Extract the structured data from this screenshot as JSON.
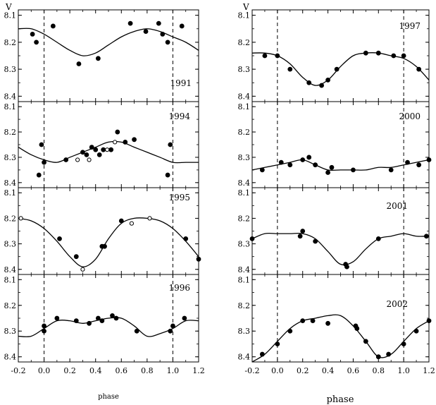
{
  "figure": {
    "ylabel": "V",
    "xlabel_left": "phase",
    "xlabel_right": "phase"
  },
  "chart_data": [
    {
      "type": "scatter",
      "title": "1991",
      "column": "left",
      "xlim": [
        -0.2,
        1.2
      ],
      "ylim": [
        8.42,
        8.08
      ],
      "y_inverted": true,
      "yticks": [
        "8.1",
        "8.2",
        "8.3",
        "8.4"
      ],
      "xticks": [],
      "vlines": [
        0.0,
        1.0
      ],
      "series": [
        {
          "marker": "filled",
          "x": [
            -0.09,
            -0.06,
            0.07,
            0.27,
            0.42,
            0.67,
            0.79,
            0.89,
            0.92,
            0.96,
            1.07
          ],
          "y": [
            8.17,
            8.2,
            8.14,
            8.28,
            8.26,
            8.13,
            8.16,
            8.13,
            8.17,
            8.2,
            8.14
          ]
        }
      ],
      "curve": {
        "x": [
          -0.2,
          -0.1,
          0.0,
          0.1,
          0.2,
          0.3,
          0.4,
          0.5,
          0.6,
          0.7,
          0.8,
          0.9,
          1.0,
          1.1,
          1.2
        ],
        "y": [
          8.15,
          8.15,
          8.17,
          8.2,
          8.23,
          8.25,
          8.24,
          8.21,
          8.18,
          8.16,
          8.15,
          8.16,
          8.18,
          8.2,
          8.23
        ]
      }
    },
    {
      "type": "scatter",
      "title": "1994",
      "column": "left",
      "xlim": [
        -0.2,
        1.2
      ],
      "ylim": [
        8.42,
        8.08
      ],
      "y_inverted": true,
      "yticks": [
        "8.1",
        "8.2",
        "8.3",
        "8.4"
      ],
      "xticks": [],
      "vlines": [
        0.0,
        1.0
      ],
      "series": [
        {
          "marker": "filled",
          "x": [
            -0.04,
            -0.02,
            0.0,
            0.17,
            0.3,
            0.33,
            0.37,
            0.4,
            0.43,
            0.46,
            0.52,
            0.57,
            0.63,
            0.7,
            0.96,
            0.98
          ],
          "y": [
            8.37,
            8.25,
            8.32,
            8.31,
            8.28,
            8.29,
            8.26,
            8.27,
            8.29,
            8.27,
            8.27,
            8.2,
            8.24,
            8.23,
            8.37,
            8.25
          ]
        },
        {
          "marker": "open",
          "x": [
            0.26,
            0.35,
            0.49,
            0.55
          ],
          "y": [
            8.31,
            8.31,
            8.27,
            8.24
          ]
        }
      ],
      "curve": {
        "x": [
          -0.2,
          -0.1,
          0.0,
          0.1,
          0.2,
          0.3,
          0.4,
          0.5,
          0.6,
          0.7,
          0.8,
          0.9,
          1.0,
          1.1,
          1.2
        ],
        "y": [
          8.26,
          8.29,
          8.31,
          8.32,
          8.3,
          8.28,
          8.26,
          8.24,
          8.24,
          8.26,
          8.28,
          8.3,
          8.32,
          8.32,
          8.32
        ]
      }
    },
    {
      "type": "scatter",
      "title": "1995",
      "column": "left",
      "xlim": [
        -0.2,
        1.2
      ],
      "ylim": [
        8.42,
        8.08
      ],
      "y_inverted": true,
      "yticks": [
        "8.1",
        "8.2",
        "8.3",
        "8.4"
      ],
      "xticks": [],
      "vlines": [
        0.0,
        1.0
      ],
      "series": [
        {
          "marker": "filled",
          "x": [
            0.12,
            0.25,
            0.45,
            0.47,
            0.6,
            1.1,
            1.2
          ],
          "y": [
            8.28,
            8.35,
            8.31,
            8.31,
            8.21,
            8.28,
            8.36
          ]
        },
        {
          "marker": "open",
          "x": [
            -0.18,
            0.3,
            0.68,
            0.82
          ],
          "y": [
            8.2,
            8.4,
            8.22,
            8.2
          ]
        }
      ],
      "curve": {
        "x": [
          -0.2,
          -0.1,
          0.0,
          0.1,
          0.2,
          0.3,
          0.4,
          0.5,
          0.6,
          0.7,
          0.8,
          0.9,
          1.0,
          1.1,
          1.2
        ],
        "y": [
          8.2,
          8.21,
          8.24,
          8.29,
          8.35,
          8.39,
          8.36,
          8.28,
          8.22,
          8.2,
          8.2,
          8.21,
          8.24,
          8.29,
          8.35
        ]
      }
    },
    {
      "type": "scatter",
      "title": "1996",
      "column": "left",
      "xlim": [
        -0.2,
        1.2
      ],
      "ylim": [
        8.42,
        8.08
      ],
      "y_inverted": true,
      "yticks": [
        "8.1",
        "8.2",
        "8.3",
        "8.4"
      ],
      "xticks": [
        "-0.2",
        "0.0",
        "0.2",
        "0.4",
        "0.6",
        "0.8",
        "1.0",
        "1.2"
      ],
      "vlines": [
        0.0,
        1.0
      ],
      "series": [
        {
          "marker": "filled",
          "x": [
            0.0,
            0.0,
            0.1,
            0.25,
            0.35,
            0.42,
            0.45,
            0.53,
            0.56,
            0.72,
            0.98,
            1.0,
            1.09
          ],
          "y": [
            8.3,
            8.28,
            8.25,
            8.26,
            8.27,
            8.25,
            8.26,
            8.24,
            8.25,
            8.3,
            8.3,
            8.28,
            8.25
          ]
        }
      ],
      "curve": {
        "x": [
          -0.2,
          -0.1,
          0.0,
          0.1,
          0.2,
          0.3,
          0.4,
          0.5,
          0.6,
          0.7,
          0.8,
          0.9,
          1.0,
          1.1,
          1.2
        ],
        "y": [
          8.32,
          8.32,
          8.29,
          8.26,
          8.26,
          8.27,
          8.26,
          8.25,
          8.25,
          8.28,
          8.32,
          8.31,
          8.29,
          8.26,
          8.26
        ]
      }
    },
    {
      "type": "scatter",
      "title": "1997",
      "column": "right",
      "xlim": [
        -0.2,
        1.2
      ],
      "ylim": [
        8.42,
        8.08
      ],
      "y_inverted": true,
      "yticks": [
        "8.1",
        "8.2",
        "8.3",
        "8.4"
      ],
      "xticks": [],
      "vlines": [
        0.0,
        1.0
      ],
      "series": [
        {
          "marker": "filled",
          "x": [
            -0.1,
            0.0,
            0.1,
            0.25,
            0.35,
            0.4,
            0.47,
            0.7,
            0.8,
            0.92,
            1.0,
            1.12
          ],
          "y": [
            8.25,
            8.25,
            8.3,
            8.35,
            8.36,
            8.34,
            8.3,
            8.24,
            8.24,
            8.25,
            8.25,
            8.3
          ]
        }
      ],
      "curve": {
        "x": [
          -0.2,
          -0.1,
          0.0,
          0.1,
          0.2,
          0.3,
          0.4,
          0.5,
          0.6,
          0.7,
          0.8,
          0.9,
          1.0,
          1.1,
          1.2
        ],
        "y": [
          8.24,
          8.24,
          8.25,
          8.28,
          8.33,
          8.36,
          8.34,
          8.29,
          8.25,
          8.24,
          8.24,
          8.25,
          8.26,
          8.29,
          8.34
        ]
      }
    },
    {
      "type": "scatter",
      "title": "2000",
      "column": "right",
      "xlim": [
        -0.2,
        1.2
      ],
      "ylim": [
        8.42,
        8.08
      ],
      "y_inverted": true,
      "yticks": [
        "8.1",
        "8.2",
        "8.3",
        "8.4"
      ],
      "xticks": [],
      "vlines": [
        0.0,
        1.0
      ],
      "series": [
        {
          "marker": "filled",
          "x": [
            -0.12,
            0.03,
            0.1,
            0.2,
            0.25,
            0.3,
            0.4,
            0.43,
            0.6,
            0.9,
            1.03,
            1.12,
            1.2
          ],
          "y": [
            8.35,
            8.32,
            8.33,
            8.31,
            8.3,
            8.33,
            8.36,
            8.34,
            8.35,
            8.35,
            8.32,
            8.33,
            8.31
          ]
        }
      ],
      "curve": {
        "x": [
          -0.2,
          -0.1,
          0.0,
          0.1,
          0.2,
          0.3,
          0.4,
          0.5,
          0.6,
          0.7,
          0.8,
          0.9,
          1.0,
          1.1,
          1.2
        ],
        "y": [
          8.35,
          8.34,
          8.33,
          8.32,
          8.31,
          8.33,
          8.35,
          8.35,
          8.35,
          8.35,
          8.34,
          8.34,
          8.33,
          8.32,
          8.31
        ]
      }
    },
    {
      "type": "scatter",
      "title": "2001",
      "column": "right",
      "xlim": [
        -0.2,
        1.2
      ],
      "ylim": [
        8.42,
        8.08
      ],
      "y_inverted": true,
      "yticks": [
        "8.1",
        "8.2",
        "8.3",
        "8.4"
      ],
      "xticks": [],
      "vlines": [
        0.0,
        1.0
      ],
      "series": [
        {
          "marker": "filled",
          "x": [
            -0.2,
            0.18,
            0.2,
            0.3,
            0.54,
            0.55,
            0.8,
            1.18
          ],
          "y": [
            8.28,
            8.27,
            8.25,
            8.29,
            8.38,
            8.39,
            8.28,
            8.27
          ]
        }
      ],
      "curve": {
        "x": [
          -0.2,
          -0.1,
          0.0,
          0.1,
          0.2,
          0.3,
          0.4,
          0.5,
          0.6,
          0.7,
          0.8,
          0.9,
          1.0,
          1.1,
          1.2
        ],
        "y": [
          8.28,
          8.26,
          8.26,
          8.26,
          8.26,
          8.28,
          8.33,
          8.38,
          8.37,
          8.32,
          8.28,
          8.27,
          8.26,
          8.27,
          8.27
        ]
      }
    },
    {
      "type": "scatter",
      "title": "2002",
      "column": "right",
      "xlim": [
        -0.2,
        1.2
      ],
      "ylim": [
        8.42,
        8.08
      ],
      "y_inverted": true,
      "yticks": [
        "8.1",
        "8.2",
        "8.3",
        "8.4"
      ],
      "xticks": [
        "-0.2",
        "0.0",
        "0.2",
        "0.4",
        "0.6",
        "0.8",
        "1.0",
        "1.2"
      ],
      "vlines": [
        0.0,
        1.0
      ],
      "series": [
        {
          "marker": "filled",
          "x": [
            -0.12,
            0.0,
            0.1,
            0.2,
            0.28,
            0.4,
            0.62,
            0.63,
            0.7,
            0.8,
            0.88,
            1.0,
            1.1,
            1.2
          ],
          "y": [
            8.39,
            8.35,
            8.3,
            8.26,
            8.26,
            8.27,
            8.28,
            8.29,
            8.34,
            8.4,
            8.39,
            8.35,
            8.3,
            8.26
          ]
        }
      ],
      "curve": {
        "x": [
          -0.2,
          -0.1,
          0.0,
          0.1,
          0.2,
          0.3,
          0.4,
          0.5,
          0.6,
          0.7,
          0.8,
          0.9,
          1.0,
          1.1,
          1.2
        ],
        "y": [
          8.42,
          8.39,
          8.34,
          8.29,
          8.26,
          8.25,
          8.24,
          8.24,
          8.28,
          8.34,
          8.4,
          8.39,
          8.34,
          8.29,
          8.26
        ]
      }
    }
  ]
}
